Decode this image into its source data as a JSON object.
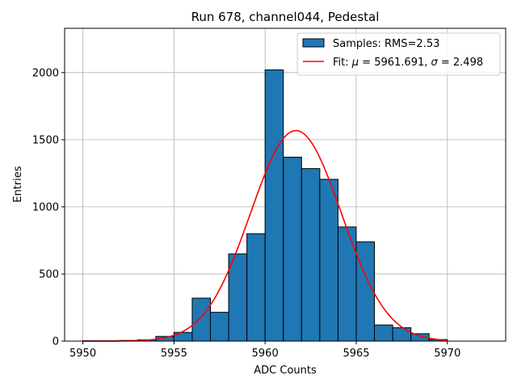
{
  "chart_data": {
    "type": "bar",
    "title": "Run 678, channel044, Pedestal",
    "xlabel": "ADC Counts",
    "ylabel": "Entries",
    "xlim": [
      5949,
      5973.2
    ],
    "ylim": [
      0,
      2330
    ],
    "xticks": [
      5950,
      5955,
      5960,
      5965,
      5970
    ],
    "yticks": [
      0,
      500,
      1000,
      1500,
      2000
    ],
    "grid": true,
    "legend_position": "top-right",
    "histogram": {
      "name": "Samples: RMS=2.53",
      "color": "#1f77b4",
      "bin_width": 1,
      "bins": [
        {
          "x": 5950,
          "value": 3
        },
        {
          "x": 5951,
          "value": 3
        },
        {
          "x": 5952,
          "value": 5
        },
        {
          "x": 5953,
          "value": 10
        },
        {
          "x": 5954,
          "value": 35
        },
        {
          "x": 5955,
          "value": 65
        },
        {
          "x": 5956,
          "value": 320
        },
        {
          "x": 5957,
          "value": 215
        },
        {
          "x": 5958,
          "value": 650
        },
        {
          "x": 5959,
          "value": 800
        },
        {
          "x": 5960,
          "value": 2020
        },
        {
          "x": 5961,
          "value": 1370
        },
        {
          "x": 5962,
          "value": 1285
        },
        {
          "x": 5963,
          "value": 1205
        },
        {
          "x": 5964,
          "value": 850
        },
        {
          "x": 5965,
          "value": 740
        },
        {
          "x": 5966,
          "value": 120
        },
        {
          "x": 5967,
          "value": 100
        },
        {
          "x": 5968,
          "value": 55
        },
        {
          "x": 5969,
          "value": 12
        }
      ]
    },
    "fit": {
      "name_prefix": "Fit: ",
      "name_mu": "μ",
      "name_mid": " = 5961.691, ",
      "name_sigma": "σ",
      "name_suffix": " = 2.498",
      "color": "#ff0000",
      "mu": 5961.691,
      "sigma": 2.498,
      "amplitude": 1568,
      "x_range": [
        5950,
        5970
      ]
    }
  }
}
